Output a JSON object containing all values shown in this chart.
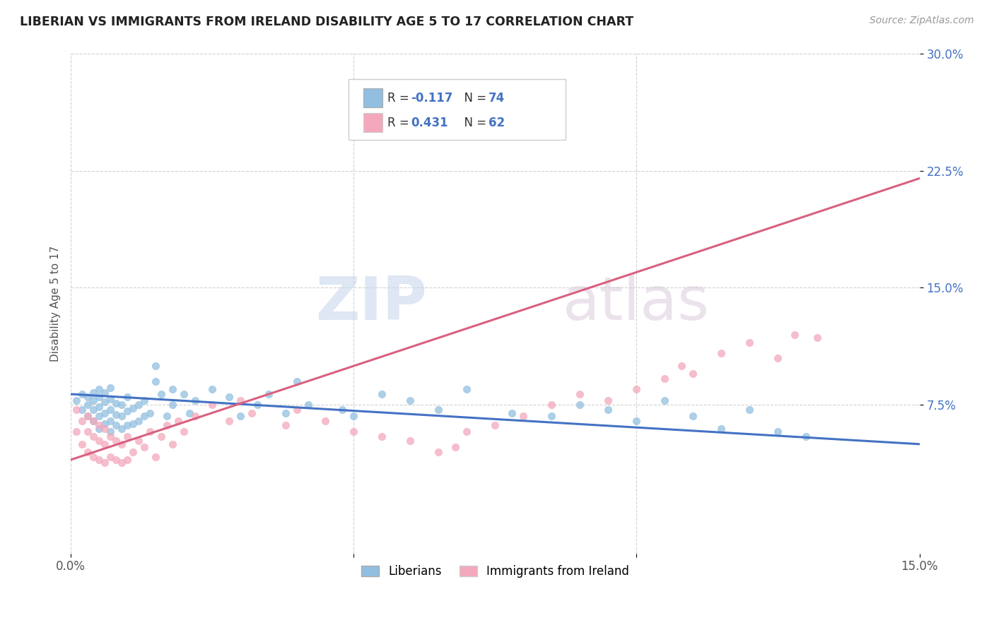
{
  "title": "LIBERIAN VS IMMIGRANTS FROM IRELAND DISABILITY AGE 5 TO 17 CORRELATION CHART",
  "source": "Source: ZipAtlas.com",
  "ylabel_label": "Disability Age 5 to 17",
  "xlim": [
    0.0,
    0.15
  ],
  "ylim": [
    -0.02,
    0.3
  ],
  "xticks": [
    0.0,
    0.05,
    0.1,
    0.15
  ],
  "xtick_labels": [
    "0.0%",
    "",
    "",
    "15.0%"
  ],
  "yticks": [
    0.075,
    0.15,
    0.225,
    0.3
  ],
  "ytick_labels": [
    "7.5%",
    "15.0%",
    "22.5%",
    "30.0%"
  ],
  "legend_blue_label": "Liberians",
  "legend_pink_label": "Immigrants from Ireland",
  "r_blue": "-0.117",
  "n_blue": "74",
  "r_pink": "0.431",
  "n_pink": "62",
  "blue_color": "#92BFE0",
  "pink_color": "#F4A8BC",
  "blue_line_color": "#4472C4",
  "pink_line_color": "#D96080",
  "watermark_zip": "ZIP",
  "watermark_atlas": "atlas",
  "blue_scatter_x": [
    0.001,
    0.002,
    0.002,
    0.003,
    0.003,
    0.003,
    0.004,
    0.004,
    0.004,
    0.004,
    0.005,
    0.005,
    0.005,
    0.005,
    0.005,
    0.006,
    0.006,
    0.006,
    0.006,
    0.007,
    0.007,
    0.007,
    0.007,
    0.007,
    0.008,
    0.008,
    0.008,
    0.009,
    0.009,
    0.009,
    0.01,
    0.01,
    0.01,
    0.011,
    0.011,
    0.012,
    0.012,
    0.013,
    0.013,
    0.014,
    0.015,
    0.015,
    0.016,
    0.017,
    0.018,
    0.018,
    0.02,
    0.021,
    0.022,
    0.025,
    0.028,
    0.03,
    0.033,
    0.035,
    0.038,
    0.04,
    0.042,
    0.048,
    0.05,
    0.055,
    0.06,
    0.065,
    0.07,
    0.078,
    0.085,
    0.09,
    0.095,
    0.1,
    0.105,
    0.11,
    0.115,
    0.12,
    0.125,
    0.13
  ],
  "blue_scatter_y": [
    0.078,
    0.072,
    0.082,
    0.068,
    0.075,
    0.08,
    0.065,
    0.072,
    0.078,
    0.083,
    0.06,
    0.068,
    0.074,
    0.08,
    0.085,
    0.063,
    0.07,
    0.077,
    0.083,
    0.058,
    0.065,
    0.072,
    0.079,
    0.086,
    0.062,
    0.069,
    0.076,
    0.06,
    0.068,
    0.075,
    0.062,
    0.071,
    0.08,
    0.063,
    0.073,
    0.065,
    0.075,
    0.068,
    0.078,
    0.07,
    0.09,
    0.1,
    0.082,
    0.068,
    0.075,
    0.085,
    0.082,
    0.07,
    0.078,
    0.085,
    0.08,
    0.068,
    0.075,
    0.082,
    0.07,
    0.09,
    0.075,
    0.072,
    0.068,
    0.082,
    0.078,
    0.072,
    0.085,
    0.07,
    0.068,
    0.075,
    0.072,
    0.065,
    0.078,
    0.068,
    0.06,
    0.072,
    0.058,
    0.055
  ],
  "pink_scatter_x": [
    0.001,
    0.001,
    0.002,
    0.002,
    0.003,
    0.003,
    0.003,
    0.004,
    0.004,
    0.004,
    0.005,
    0.005,
    0.005,
    0.006,
    0.006,
    0.006,
    0.007,
    0.007,
    0.008,
    0.008,
    0.009,
    0.009,
    0.01,
    0.01,
    0.011,
    0.012,
    0.013,
    0.014,
    0.015,
    0.016,
    0.017,
    0.018,
    0.019,
    0.02,
    0.022,
    0.025,
    0.028,
    0.03,
    0.032,
    0.038,
    0.04,
    0.045,
    0.05,
    0.055,
    0.06,
    0.065,
    0.068,
    0.07,
    0.075,
    0.08,
    0.085,
    0.09,
    0.095,
    0.1,
    0.105,
    0.108,
    0.11,
    0.115,
    0.12,
    0.125,
    0.128,
    0.132
  ],
  "pink_scatter_y": [
    0.058,
    0.072,
    0.05,
    0.065,
    0.045,
    0.058,
    0.068,
    0.042,
    0.055,
    0.065,
    0.04,
    0.052,
    0.062,
    0.038,
    0.05,
    0.06,
    0.042,
    0.055,
    0.04,
    0.052,
    0.038,
    0.05,
    0.04,
    0.055,
    0.045,
    0.052,
    0.048,
    0.058,
    0.042,
    0.055,
    0.062,
    0.05,
    0.065,
    0.058,
    0.068,
    0.075,
    0.065,
    0.078,
    0.07,
    0.062,
    0.072,
    0.065,
    0.058,
    0.055,
    0.052,
    0.045,
    0.048,
    0.058,
    0.062,
    0.068,
    0.075,
    0.082,
    0.078,
    0.085,
    0.092,
    0.1,
    0.095,
    0.108,
    0.115,
    0.105,
    0.12,
    0.118
  ],
  "blue_line_x": [
    0.0,
    0.15
  ],
  "blue_line_y": [
    0.082,
    0.05
  ],
  "pink_line_x": [
    0.0,
    0.15
  ],
  "pink_line_y": [
    0.04,
    0.22
  ]
}
